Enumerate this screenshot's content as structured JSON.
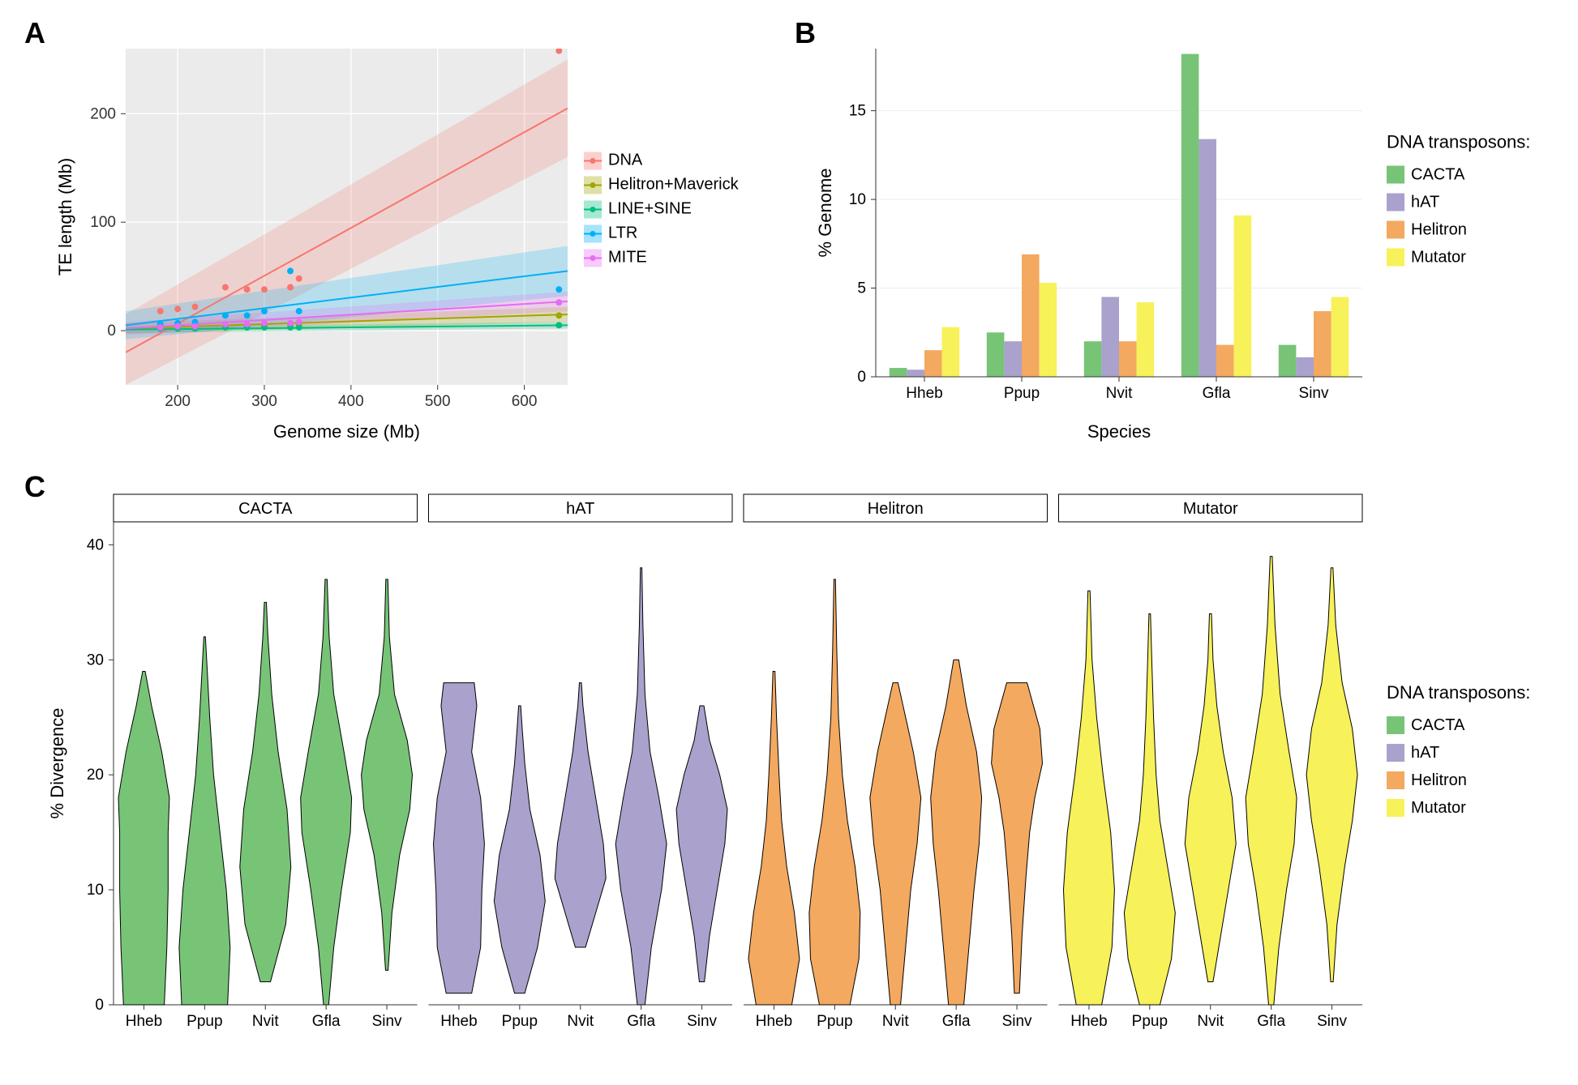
{
  "panelA": {
    "label": "A",
    "type": "scatter_with_regression",
    "xlabel": "Genome size (Mb)",
    "ylabel": "TE length (Mb)",
    "xlim": [
      140,
      650
    ],
    "ylim": [
      -50,
      260
    ],
    "xticks": [
      200,
      300,
      400,
      500,
      600
    ],
    "yticks": [
      0,
      100,
      200
    ],
    "background_color": "#ebebeb",
    "grid_color": "#ffffff",
    "legend_title": "",
    "series": [
      {
        "name": "DNA",
        "color": "#f8766d",
        "points": [
          [
            180,
            18
          ],
          [
            200,
            20
          ],
          [
            220,
            22
          ],
          [
            255,
            40
          ],
          [
            280,
            38
          ],
          [
            300,
            38
          ],
          [
            330,
            40
          ],
          [
            340,
            48
          ],
          [
            640,
            258
          ]
        ],
        "line": {
          "x1": 140,
          "y1": -20,
          "x2": 650,
          "y2": 205
        },
        "ribbon": [
          [
            140,
            -50,
            15
          ],
          [
            650,
            160,
            250
          ]
        ]
      },
      {
        "name": "Helitron+Maverick",
        "color": "#a3a500",
        "points": [
          [
            180,
            3
          ],
          [
            200,
            3
          ],
          [
            220,
            4
          ],
          [
            255,
            5
          ],
          [
            280,
            5
          ],
          [
            300,
            5
          ],
          [
            330,
            6
          ],
          [
            340,
            6
          ],
          [
            640,
            14
          ]
        ],
        "line": {
          "x1": 140,
          "y1": 2,
          "x2": 650,
          "y2": 15
        },
        "ribbon": [
          [
            140,
            -3,
            7
          ],
          [
            650,
            8,
            22
          ]
        ]
      },
      {
        "name": "LINE+SINE",
        "color": "#00bf7d",
        "points": [
          [
            180,
            2
          ],
          [
            200,
            2
          ],
          [
            220,
            2
          ],
          [
            255,
            3
          ],
          [
            280,
            3
          ],
          [
            300,
            3
          ],
          [
            330,
            3
          ],
          [
            340,
            3
          ],
          [
            640,
            5
          ]
        ],
        "line": {
          "x1": 140,
          "y1": 1,
          "x2": 650,
          "y2": 5
        },
        "ribbon": [
          [
            140,
            -2,
            4
          ],
          [
            650,
            2,
            8
          ]
        ]
      },
      {
        "name": "LTR",
        "color": "#00b0f6",
        "points": [
          [
            180,
            6
          ],
          [
            200,
            7
          ],
          [
            220,
            8
          ],
          [
            255,
            14
          ],
          [
            280,
            14
          ],
          [
            300,
            18
          ],
          [
            330,
            55
          ],
          [
            340,
            18
          ],
          [
            640,
            38
          ]
        ],
        "line": {
          "x1": 140,
          "y1": 5,
          "x2": 650,
          "y2": 55
        },
        "ribbon": [
          [
            140,
            -8,
            18
          ],
          [
            650,
            32,
            78
          ]
        ]
      },
      {
        "name": "MITE",
        "color": "#e76bf3",
        "points": [
          [
            180,
            3
          ],
          [
            200,
            4
          ],
          [
            220,
            4
          ],
          [
            255,
            6
          ],
          [
            280,
            6
          ],
          [
            300,
            7
          ],
          [
            330,
            7
          ],
          [
            340,
            8
          ],
          [
            640,
            26
          ]
        ],
        "line": {
          "x1": 140,
          "y1": 2,
          "x2": 650,
          "y2": 27
        },
        "ribbon": [
          [
            140,
            -4,
            8
          ],
          [
            650,
            18,
            36
          ]
        ]
      }
    ]
  },
  "panelB": {
    "label": "B",
    "type": "bar",
    "xlabel": "Species",
    "ylabel": "% Genome",
    "ylim": [
      0,
      18.5
    ],
    "yticks": [
      0,
      5,
      10,
      15
    ],
    "background_color": "#ffffff",
    "categories": [
      "Hheb",
      "Ppup",
      "Nvit",
      "Gfla",
      "Sinv"
    ],
    "legend_title": "DNA transposons:",
    "groups": [
      {
        "name": "CACTA",
        "color": "#77c477",
        "values": [
          0.5,
          2.5,
          2.0,
          18.2,
          1.8
        ]
      },
      {
        "name": "hAT",
        "color": "#aaa1cc",
        "values": [
          0.4,
          2.0,
          4.5,
          13.4,
          1.1
        ]
      },
      {
        "name": "Helitron",
        "color": "#f3a95f",
        "values": [
          1.5,
          6.9,
          2.0,
          1.8,
          3.7
        ]
      },
      {
        "name": "Mutator",
        "color": "#f7f15a",
        "values": [
          2.8,
          5.3,
          4.2,
          9.1,
          4.5
        ]
      }
    ]
  },
  "panelC": {
    "label": "C",
    "type": "violin_faceted",
    "xlabel": "",
    "ylabel": "% Divergence",
    "ylim": [
      0,
      42
    ],
    "yticks": [
      0,
      10,
      20,
      30,
      40
    ],
    "background_color": "#ffffff",
    "facets": [
      "CACTA",
      "hAT",
      "Helitron",
      "Mutator"
    ],
    "species": [
      "Hheb",
      "Ppup",
      "Nvit",
      "Gfla",
      "Sinv"
    ],
    "legend_title": "DNA transposons:",
    "colors": {
      "CACTA": "#77c477",
      "hAT": "#aaa1cc",
      "Helitron": "#f3a95f",
      "Mutator": "#f7f15a"
    },
    "violin_outline": "#000000",
    "violins": {
      "CACTA": {
        "Hheb": {
          "min": 0,
          "max": 29,
          "widths": [
            [
              0,
              0.8
            ],
            [
              5,
              0.9
            ],
            [
              10,
              0.95
            ],
            [
              15,
              0.95
            ],
            [
              18,
              1.0
            ],
            [
              22,
              0.7
            ],
            [
              26,
              0.3
            ],
            [
              29,
              0.05
            ]
          ]
        },
        "Ppup": {
          "min": 0,
          "max": 32,
          "widths": [
            [
              0,
              0.9
            ],
            [
              5,
              1.0
            ],
            [
              10,
              0.85
            ],
            [
              15,
              0.6
            ],
            [
              20,
              0.35
            ],
            [
              25,
              0.2
            ],
            [
              30,
              0.08
            ],
            [
              32,
              0.03
            ]
          ]
        },
        "Nvit": {
          "min": 2,
          "max": 35,
          "widths": [
            [
              2,
              0.2
            ],
            [
              7,
              0.8
            ],
            [
              12,
              1.0
            ],
            [
              17,
              0.85
            ],
            [
              22,
              0.5
            ],
            [
              27,
              0.25
            ],
            [
              32,
              0.1
            ],
            [
              35,
              0.04
            ]
          ]
        },
        "Gfla": {
          "min": 0,
          "max": 37,
          "widths": [
            [
              0,
              0.1
            ],
            [
              5,
              0.3
            ],
            [
              10,
              0.6
            ],
            [
              15,
              0.95
            ],
            [
              18,
              1.0
            ],
            [
              22,
              0.7
            ],
            [
              27,
              0.3
            ],
            [
              32,
              0.12
            ],
            [
              37,
              0.04
            ]
          ]
        },
        "Sinv": {
          "min": 3,
          "max": 37,
          "widths": [
            [
              3,
              0.05
            ],
            [
              8,
              0.2
            ],
            [
              13,
              0.5
            ],
            [
              17,
              0.9
            ],
            [
              20,
              1.0
            ],
            [
              23,
              0.8
            ],
            [
              27,
              0.3
            ],
            [
              32,
              0.1
            ],
            [
              37,
              0.04
            ]
          ]
        }
      },
      "hAT": {
        "Hheb": {
          "min": 1,
          "max": 28,
          "widths": [
            [
              1,
              0.5
            ],
            [
              5,
              0.85
            ],
            [
              10,
              0.9
            ],
            [
              14,
              1.0
            ],
            [
              18,
              0.85
            ],
            [
              22,
              0.5
            ],
            [
              26,
              0.7
            ],
            [
              28,
              0.6
            ]
          ]
        },
        "Ppup": {
          "min": 1,
          "max": 26,
          "widths": [
            [
              1,
              0.2
            ],
            [
              5,
              0.7
            ],
            [
              9,
              1.0
            ],
            [
              13,
              0.8
            ],
            [
              17,
              0.4
            ],
            [
              21,
              0.2
            ],
            [
              24,
              0.1
            ],
            [
              26,
              0.04
            ]
          ]
        },
        "Nvit": {
          "min": 5,
          "max": 28,
          "widths": [
            [
              5,
              0.2
            ],
            [
              8,
              0.6
            ],
            [
              11,
              1.0
            ],
            [
              14,
              0.9
            ],
            [
              18,
              0.6
            ],
            [
              22,
              0.3
            ],
            [
              26,
              0.1
            ],
            [
              28,
              0.04
            ]
          ]
        },
        "Gfla": {
          "min": 0,
          "max": 38,
          "widths": [
            [
              0,
              0.15
            ],
            [
              5,
              0.4
            ],
            [
              10,
              0.8
            ],
            [
              14,
              1.0
            ],
            [
              18,
              0.7
            ],
            [
              22,
              0.35
            ],
            [
              27,
              0.15
            ],
            [
              33,
              0.07
            ],
            [
              38,
              0.03
            ]
          ]
        },
        "Sinv": {
          "min": 2,
          "max": 26,
          "widths": [
            [
              2,
              0.1
            ],
            [
              6,
              0.3
            ],
            [
              10,
              0.6
            ],
            [
              14,
              0.9
            ],
            [
              17,
              1.0
            ],
            [
              20,
              0.7
            ],
            [
              23,
              0.3
            ],
            [
              26,
              0.08
            ]
          ]
        }
      },
      "Helitron": {
        "Hheb": {
          "min": 0,
          "max": 29,
          "widths": [
            [
              0,
              0.7
            ],
            [
              4,
              1.0
            ],
            [
              8,
              0.8
            ],
            [
              12,
              0.5
            ],
            [
              16,
              0.3
            ],
            [
              20,
              0.2
            ],
            [
              25,
              0.1
            ],
            [
              29,
              0.04
            ]
          ]
        },
        "Ppup": {
          "min": 0,
          "max": 37,
          "widths": [
            [
              0,
              0.6
            ],
            [
              4,
              0.95
            ],
            [
              8,
              1.0
            ],
            [
              12,
              0.8
            ],
            [
              16,
              0.5
            ],
            [
              20,
              0.3
            ],
            [
              25,
              0.15
            ],
            [
              31,
              0.08
            ],
            [
              37,
              0.03
            ]
          ]
        },
        "Nvit": {
          "min": 0,
          "max": 28,
          "widths": [
            [
              0,
              0.2
            ],
            [
              5,
              0.4
            ],
            [
              10,
              0.6
            ],
            [
              14,
              0.85
            ],
            [
              18,
              1.0
            ],
            [
              22,
              0.7
            ],
            [
              26,
              0.3
            ],
            [
              28,
              0.1
            ]
          ]
        },
        "Gfla": {
          "min": 0,
          "max": 30,
          "widths": [
            [
              0,
              0.3
            ],
            [
              5,
              0.5
            ],
            [
              10,
              0.7
            ],
            [
              14,
              0.9
            ],
            [
              18,
              1.0
            ],
            [
              22,
              0.8
            ],
            [
              26,
              0.4
            ],
            [
              30,
              0.1
            ]
          ]
        },
        "Sinv": {
          "min": 1,
          "max": 28,
          "widths": [
            [
              1,
              0.1
            ],
            [
              6,
              0.2
            ],
            [
              11,
              0.35
            ],
            [
              15,
              0.5
            ],
            [
              18,
              0.7
            ],
            [
              21,
              1.0
            ],
            [
              24,
              0.9
            ],
            [
              28,
              0.4
            ]
          ]
        }
      },
      "Mutator": {
        "Hheb": {
          "min": 0,
          "max": 36,
          "widths": [
            [
              0,
              0.5
            ],
            [
              5,
              0.9
            ],
            [
              10,
              1.0
            ],
            [
              15,
              0.85
            ],
            [
              20,
              0.55
            ],
            [
              25,
              0.3
            ],
            [
              30,
              0.12
            ],
            [
              36,
              0.04
            ]
          ]
        },
        "Ppup": {
          "min": 0,
          "max": 34,
          "widths": [
            [
              0,
              0.4
            ],
            [
              4,
              0.85
            ],
            [
              8,
              1.0
            ],
            [
              12,
              0.7
            ],
            [
              16,
              0.4
            ],
            [
              20,
              0.25
            ],
            [
              25,
              0.15
            ],
            [
              30,
              0.08
            ],
            [
              34,
              0.03
            ]
          ]
        },
        "Nvit": {
          "min": 2,
          "max": 34,
          "widths": [
            [
              2,
              0.1
            ],
            [
              6,
              0.4
            ],
            [
              10,
              0.7
            ],
            [
              14,
              1.0
            ],
            [
              18,
              0.85
            ],
            [
              22,
              0.5
            ],
            [
              26,
              0.25
            ],
            [
              30,
              0.1
            ],
            [
              34,
              0.04
            ]
          ]
        },
        "Gfla": {
          "min": 0,
          "max": 39,
          "widths": [
            [
              0,
              0.1
            ],
            [
              5,
              0.3
            ],
            [
              10,
              0.6
            ],
            [
              14,
              0.9
            ],
            [
              18,
              1.0
            ],
            [
              22,
              0.7
            ],
            [
              27,
              0.35
            ],
            [
              33,
              0.15
            ],
            [
              39,
              0.04
            ]
          ]
        },
        "Sinv": {
          "min": 2,
          "max": 38,
          "widths": [
            [
              2,
              0.05
            ],
            [
              7,
              0.2
            ],
            [
              12,
              0.5
            ],
            [
              16,
              0.8
            ],
            [
              20,
              1.0
            ],
            [
              24,
              0.8
            ],
            [
              28,
              0.4
            ],
            [
              33,
              0.15
            ],
            [
              38,
              0.04
            ]
          ]
        }
      }
    }
  },
  "typography": {
    "panel_label_fontsize": 36,
    "axis_label_fontsize": 22,
    "tick_fontsize": 19,
    "legend_fontsize": 20
  }
}
